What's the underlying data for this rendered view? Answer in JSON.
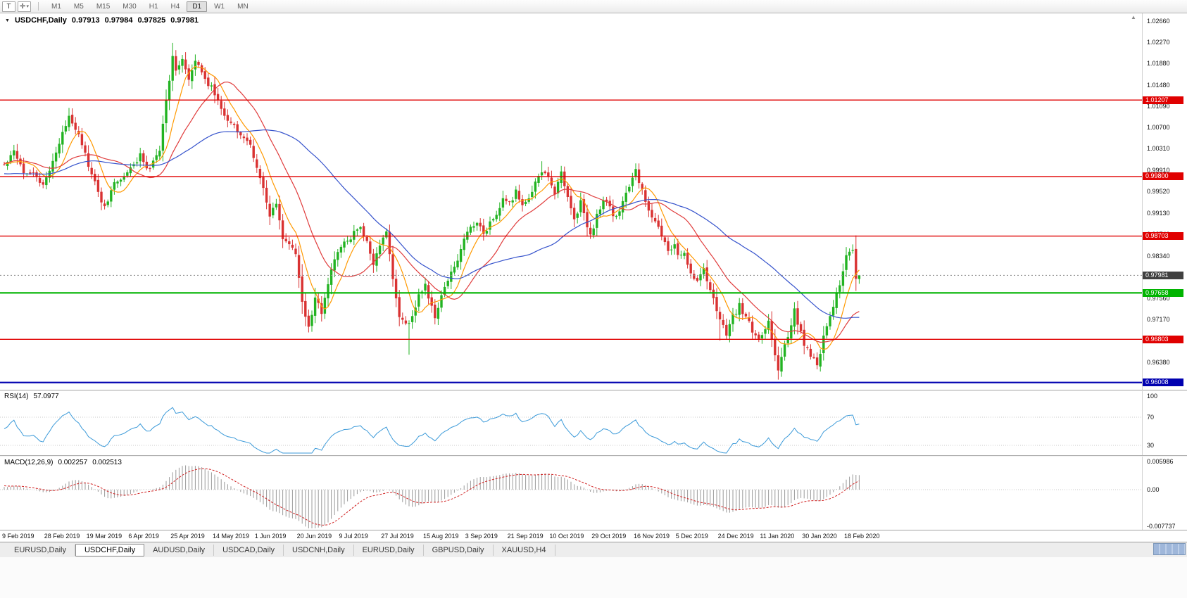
{
  "toolbar": {
    "text_tool_label": "T",
    "drawing_tool_glyph": "✛",
    "dropdown_glyph": "▾",
    "timeframes": [
      "M1",
      "M5",
      "M15",
      "M30",
      "H1",
      "H4",
      "D1",
      "W1",
      "MN"
    ],
    "active_timeframe": "D1"
  },
  "chart": {
    "collapse_glyph": "▼",
    "scroll_glyph": "▲",
    "title": "USDCHF,Daily",
    "ohlc": {
      "open": "0.97913",
      "high": "0.97984",
      "low": "0.97825",
      "close": "0.97981"
    }
  },
  "chart_data": {
    "type": "candlestick",
    "symbol": "USDCHF",
    "period": "Daily",
    "bars": 265,
    "ylim": [
      0.959,
      1.0279
    ],
    "colors": {
      "bull": "#22b322",
      "bear": "#d93232"
    },
    "y_labels": [
      "1.02660",
      "1.02270",
      "1.01880",
      "1.01480",
      "1.01090",
      "1.00700",
      "1.00310",
      "0.99910",
      "0.99520",
      "0.99130",
      "0.98740",
      "0.98340",
      "0.97950",
      "0.97560",
      "0.97170",
      "0.96770",
      "0.96380",
      "0.95990"
    ],
    "x_labels": [
      "9 Feb 2019",
      "28 Feb 2019",
      "19 Mar 2019",
      "6 Apr 2019",
      "25 Apr 2019",
      "14 May 2019",
      "1 Jun 2019",
      "20 Jun 2019",
      "9 Jul 2019",
      "27 Jul 2019",
      "15 Aug 2019",
      "3 Sep 2019",
      "21 Sep 2019",
      "10 Oct 2019",
      "29 Oct 2019",
      "16 Nov 2019",
      "5 Dec 2019",
      "24 Dec 2019",
      "11 Jan 2020",
      "30 Jan 2020",
      "18 Feb 2020"
    ],
    "levels": [
      {
        "price": 1.01207,
        "label": "1.01207",
        "color": "#e00000",
        "width": 1.4
      },
      {
        "price": 0.998,
        "label": "0.99800",
        "color": "#e00000",
        "width": 1.4
      },
      {
        "price": 0.98703,
        "label": "0.98703",
        "color": "#e00000",
        "width": 1.4
      },
      {
        "price": 0.97658,
        "label": "0.97658",
        "color": "#00b400",
        "width": 2.2
      },
      {
        "price": 0.96803,
        "label": "0.96803",
        "color": "#e00000",
        "width": 1.4
      },
      {
        "price": 0.96008,
        "label": "0.96008",
        "color": "#0000b0",
        "width": 2.2
      }
    ],
    "current": {
      "price": 0.97981,
      "label": "0.97981",
      "color": "#404040"
    },
    "close_anchors": [
      [
        0,
        1.0
      ],
      [
        3,
        1.003
      ],
      [
        6,
        0.999
      ],
      [
        9,
        0.9988
      ],
      [
        12,
        0.996
      ],
      [
        14,
        0.9995
      ],
      [
        17,
        1.004
      ],
      [
        20,
        1.0092
      ],
      [
        23,
        1.006
      ],
      [
        26,
        1.0
      ],
      [
        29,
        0.995
      ],
      [
        31,
        0.9922
      ],
      [
        34,
        0.9968
      ],
      [
        37,
        0.998
      ],
      [
        40,
        1.0
      ],
      [
        42,
        1.0022
      ],
      [
        44,
        0.999
      ],
      [
        46,
        1.0005
      ],
      [
        48,
        1.003
      ],
      [
        50,
        1.012
      ],
      [
        52,
        1.02
      ],
      [
        53,
        1.018
      ],
      [
        55,
        1.0195
      ],
      [
        57,
        1.0155
      ],
      [
        59,
        1.019
      ],
      [
        61,
        1.0175
      ],
      [
        63,
        1.015
      ],
      [
        65,
        1.0135
      ],
      [
        67,
        1.01
      ],
      [
        70,
        1.008
      ],
      [
        73,
        1.006
      ],
      [
        76,
        1.0035
      ],
      [
        78,
        1.0
      ],
      [
        80,
        0.9955
      ],
      [
        82,
        0.9905
      ],
      [
        84,
        0.993
      ],
      [
        86,
        0.9868
      ],
      [
        88,
        0.9852
      ],
      [
        90,
        0.984
      ],
      [
        92,
        0.9745
      ],
      [
        94,
        0.97
      ],
      [
        96,
        0.9758
      ],
      [
        98,
        0.9728
      ],
      [
        100,
        0.9785
      ],
      [
        102,
        0.9825
      ],
      [
        104,
        0.9852
      ],
      [
        107,
        0.9868
      ],
      [
        110,
        0.9888
      ],
      [
        112,
        0.9858
      ],
      [
        114,
        0.9818
      ],
      [
        116,
        0.9852
      ],
      [
        118,
        0.9878
      ],
      [
        120,
        0.9792
      ],
      [
        122,
        0.9722
      ],
      [
        124,
        0.9705
      ],
      [
        126,
        0.9722
      ],
      [
        128,
        0.9762
      ],
      [
        130,
        0.9778
      ],
      [
        132,
        0.974
      ],
      [
        133,
        0.9716
      ],
      [
        135,
        0.9762
      ],
      [
        137,
        0.9792
      ],
      [
        139,
        0.9812
      ],
      [
        141,
        0.9846
      ],
      [
        143,
        0.988
      ],
      [
        146,
        0.99
      ],
      [
        148,
        0.9872
      ],
      [
        150,
        0.9896
      ],
      [
        152,
        0.9912
      ],
      [
        154,
        0.9936
      ],
      [
        156,
        0.993
      ],
      [
        158,
        0.9952
      ],
      [
        160,
        0.9922
      ],
      [
        162,
        0.9942
      ],
      [
        164,
        0.9966
      ],
      [
        166,
        0.9992
      ],
      [
        168,
        0.9975
      ],
      [
        170,
        0.995
      ],
      [
        172,
        0.9988
      ],
      [
        174,
        0.9942
      ],
      [
        176,
        0.9902
      ],
      [
        178,
        0.9932
      ],
      [
        180,
        0.9888
      ],
      [
        181,
        0.987
      ],
      [
        183,
        0.9908
      ],
      [
        185,
        0.9936
      ],
      [
        187,
        0.992
      ],
      [
        189,
        0.9902
      ],
      [
        191,
        0.9936
      ],
      [
        193,
        0.9962
      ],
      [
        195,
        0.999
      ],
      [
        197,
        0.9952
      ],
      [
        199,
        0.9922
      ],
      [
        201,
        0.9896
      ],
      [
        203,
        0.987
      ],
      [
        205,
        0.9842
      ],
      [
        207,
        0.9856
      ],
      [
        208,
        0.9832
      ],
      [
        210,
        0.9842
      ],
      [
        212,
        0.9802
      ],
      [
        214,
        0.9786
      ],
      [
        216,
        0.9812
      ],
      [
        218,
        0.9772
      ],
      [
        220,
        0.9736
      ],
      [
        221,
        0.9716
      ],
      [
        223,
        0.9692
      ],
      [
        225,
        0.9722
      ],
      [
        227,
        0.9742
      ],
      [
        229,
        0.9722
      ],
      [
        231,
        0.9696
      ],
      [
        233,
        0.9682
      ],
      [
        234,
        0.9692
      ],
      [
        236,
        0.9712
      ],
      [
        238,
        0.9652
      ],
      [
        239,
        0.9628
      ],
      [
        241,
        0.9668
      ],
      [
        243,
        0.9702
      ],
      [
        244,
        0.9732
      ],
      [
        246,
        0.9692
      ],
      [
        247,
        0.9672
      ],
      [
        249,
        0.9648
      ],
      [
        251,
        0.9632
      ],
      [
        253,
        0.9682
      ],
      [
        255,
        0.9722
      ],
      [
        257,
        0.9762
      ],
      [
        259,
        0.9802
      ],
      [
        260,
        0.9832
      ],
      [
        262,
        0.9848
      ],
      [
        263,
        0.9792
      ],
      [
        264,
        0.9798
      ]
    ],
    "wick_overrides": [
      {
        "i": 20,
        "h": 1.0105
      },
      {
        "i": 52,
        "h": 1.0226
      },
      {
        "i": 94,
        "l": 0.9693
      },
      {
        "i": 125,
        "l": 0.9652
      },
      {
        "i": 166,
        "h": 1.0008
      },
      {
        "i": 195,
        "h": 1.0004
      },
      {
        "i": 221,
        "l": 0.9678
      },
      {
        "i": 239,
        "l": 0.9613
      },
      {
        "i": 251,
        "l": 0.9625
      },
      {
        "i": 262,
        "h": 0.9855
      }
    ],
    "last_bar": {
      "o": 0.97913,
      "h": 0.97984,
      "l": 0.97825,
      "c": 0.97981
    },
    "indicators": {
      "moving_averages": [
        {
          "period": 8,
          "color": "#ff9900"
        },
        {
          "period": 20,
          "color": "#e03c3c"
        },
        {
          "period": 50,
          "color": "#3653cc"
        }
      ],
      "rsi": {
        "label": "RSI(14)",
        "value": "57.0977",
        "period": 14,
        "color": "#3b9ad9",
        "axis_labels": [
          "100",
          "70",
          "30"
        ]
      },
      "macd": {
        "label": "MACD(12,26,9)",
        "value_main": "0.002257",
        "value_signal": "0.002513",
        "histogram_color": "#9a9a9a",
        "signal_color": "#d02020",
        "axis_labels": [
          "0.005986",
          "0.00",
          "-0.007737"
        ]
      }
    }
  },
  "tabs": {
    "items": [
      {
        "label": "EURUSD,Daily",
        "active": false
      },
      {
        "label": "USDCHF,Daily",
        "active": true
      },
      {
        "label": "AUDUSD,Daily",
        "active": false
      },
      {
        "label": "USDCAD,Daily",
        "active": false
      },
      {
        "label": "USDCNH,Daily",
        "active": false
      },
      {
        "label": "EURUSD,Daily",
        "active": false
      },
      {
        "label": "GBPUSD,Daily",
        "active": false
      },
      {
        "label": "XAUUSD,H4",
        "active": false
      }
    ]
  }
}
